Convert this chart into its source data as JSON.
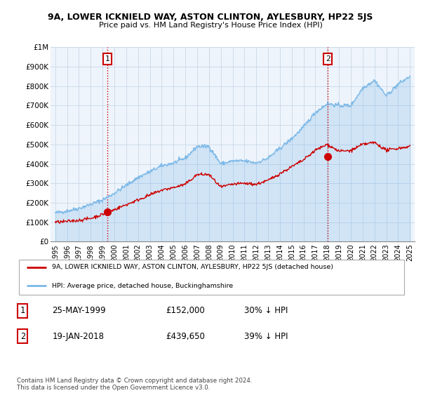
{
  "title": "9A, LOWER ICKNIELD WAY, ASTON CLINTON, AYLESBURY, HP22 5JS",
  "subtitle": "Price paid vs. HM Land Registry's House Price Index (HPI)",
  "ylabel_ticks": [
    "£0",
    "£100K",
    "£200K",
    "£300K",
    "£400K",
    "£500K",
    "£600K",
    "£700K",
    "£800K",
    "£900K",
    "£1M"
  ],
  "ytick_values": [
    0,
    100000,
    200000,
    300000,
    400000,
    500000,
    600000,
    700000,
    800000,
    900000,
    1000000
  ],
  "ylim": [
    0,
    1000000
  ],
  "hpi_color": "#7ab8e8",
  "hpi_fill_color": "#ddeef8",
  "price_color": "#cc0000",
  "sale1_date": "25-MAY-1999",
  "sale1_price": 152000,
  "sale1_pct": "30% ↓ HPI",
  "sale2_date": "19-JAN-2018",
  "sale2_price": 439650,
  "sale2_pct": "39% ↓ HPI",
  "legend_red_label": "9A, LOWER ICKNIELD WAY, ASTON CLINTON, AYLESBURY, HP22 5JS (detached house)",
  "legend_blue_label": "HPI: Average price, detached house, Buckinghamshire",
  "footnote": "Contains HM Land Registry data © Crown copyright and database right 2024.\nThis data is licensed under the Open Government Licence v3.0.",
  "background_color": "#ffffff",
  "plot_bg_color": "#eef4fb",
  "grid_color": "#c8d8e8",
  "hpi_keypoints_x": [
    1995,
    1996,
    1997,
    1998,
    1999,
    2000,
    2001,
    2002,
    2003,
    2004,
    2005,
    2006,
    2007,
    2008,
    2009,
    2010,
    2011,
    2012,
    2013,
    2014,
    2015,
    2016,
    2017,
    2018,
    2019,
    2020,
    2021,
    2022,
    2023,
    2024,
    2025
  ],
  "hpi_keypoints_y": [
    148000,
    158000,
    172000,
    192000,
    215000,
    250000,
    290000,
    330000,
    360000,
    390000,
    405000,
    430000,
    490000,
    490000,
    400000,
    415000,
    415000,
    405000,
    430000,
    480000,
    530000,
    590000,
    665000,
    710000,
    700000,
    700000,
    790000,
    830000,
    750000,
    810000,
    850000
  ],
  "price_keypoints_x": [
    1995,
    1996,
    1997,
    1998,
    1999,
    2000,
    2001,
    2002,
    2003,
    2004,
    2005,
    2006,
    2007,
    2008,
    2009,
    2010,
    2011,
    2012,
    2013,
    2014,
    2015,
    2016,
    2017,
    2018,
    2019,
    2020,
    2021,
    2022,
    2023,
    2024,
    2025
  ],
  "price_keypoints_y": [
    100000,
    104000,
    110000,
    120000,
    140000,
    165000,
    190000,
    215000,
    240000,
    265000,
    278000,
    295000,
    345000,
    345000,
    280000,
    295000,
    300000,
    295000,
    315000,
    350000,
    385000,
    420000,
    470000,
    500000,
    465000,
    468000,
    500000,
    510000,
    470000,
    480000,
    490000
  ],
  "sale1_x": 1999.389,
  "sale2_x": 2018.052
}
